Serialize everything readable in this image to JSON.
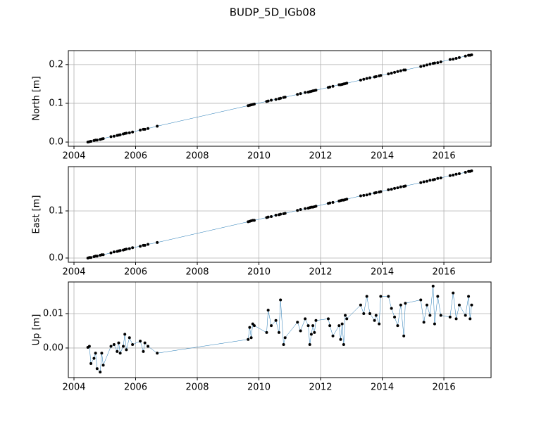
{
  "title": "BUDP_5D_IGb08",
  "chart_data": [
    {
      "type": "line",
      "ylabel": "North [m]",
      "grid": true,
      "xlim": [
        2003.817,
        2017.53
      ],
      "xticks": [
        2004,
        2006,
        2008,
        2010,
        2012,
        2014,
        2016
      ],
      "ylim": [
        -0.0108,
        0.236
      ],
      "yticks": [
        {
          "value": 0,
          "label": "0.0"
        },
        0.1,
        0.2
      ],
      "series": [
        {
          "color": "#1f77b4",
          "marker_color": "#000000",
          "x": [
            2004.45,
            2004.5,
            2004.55,
            2004.65,
            2004.7,
            2004.75,
            2004.85,
            2004.9,
            2004.95,
            2005.2,
            2005.3,
            2005.4,
            2005.45,
            2005.5,
            2005.6,
            2005.65,
            2005.7,
            2005.8,
            2005.9,
            2006.15,
            2006.25,
            2006.3,
            2006.4,
            2006.7,
            2009.65,
            2009.7,
            2009.75,
            2009.8,
            2009.85,
            2010.25,
            2010.3,
            2010.4,
            2010.55,
            2010.65,
            2010.7,
            2010.8,
            2010.85,
            2011.25,
            2011.35,
            2011.5,
            2011.6,
            2011.65,
            2011.7,
            2011.75,
            2011.8,
            2011.85,
            2012.25,
            2012.3,
            2012.4,
            2012.6,
            2012.65,
            2012.7,
            2012.75,
            2012.8,
            2012.85,
            2013.3,
            2013.4,
            2013.5,
            2013.6,
            2013.75,
            2013.8,
            2013.9,
            2013.95,
            2014.2,
            2014.3,
            2014.4,
            2014.5,
            2014.6,
            2014.7,
            2014.75,
            2015.25,
            2015.35,
            2015.45,
            2015.55,
            2015.65,
            2015.7,
            2015.8,
            2015.9,
            2016.2,
            2016.3,
            2016.4,
            2016.5,
            2016.7,
            2016.8,
            2016.85,
            2016.9
          ],
          "values": [
            0,
            0.001,
            0.002,
            0.004,
            0.005,
            0.005,
            0.007,
            0.008,
            0.009,
            0.014,
            0.015,
            0.017,
            0.018,
            0.019,
            0.021,
            0.022,
            0.023,
            0.024,
            0.026,
            0.031,
            0.033,
            0.033,
            0.035,
            0.041,
            0.094,
            0.095,
            0.096,
            0.097,
            0.098,
            0.105,
            0.106,
            0.108,
            0.11,
            0.112,
            0.113,
            0.115,
            0.116,
            0.123,
            0.125,
            0.128,
            0.129,
            0.13,
            0.131,
            0.132,
            0.133,
            0.134,
            0.141,
            0.142,
            0.144,
            0.148,
            0.148,
            0.149,
            0.15,
            0.151,
            0.152,
            0.16,
            0.162,
            0.164,
            0.166,
            0.168,
            0.169,
            0.171,
            0.172,
            0.176,
            0.178,
            0.18,
            0.182,
            0.184,
            0.186,
            0.186,
            0.195,
            0.197,
            0.199,
            0.201,
            0.203,
            0.204,
            0.205,
            0.207,
            0.213,
            0.214,
            0.216,
            0.218,
            0.222,
            0.224,
            0.224,
            0.225
          ]
        }
      ]
    },
    {
      "type": "line",
      "ylabel": "East [m]",
      "grid": true,
      "xlim": [
        2003.817,
        2017.53
      ],
      "xticks": [
        2004,
        2006,
        2008,
        2010,
        2012,
        2014,
        2016
      ],
      "ylim": [
        -0.009,
        0.194
      ],
      "yticks": [
        {
          "value": 0,
          "label": "0.0"
        },
        0.1
      ],
      "series": [
        {
          "color": "#1f77b4",
          "marker_color": "#000000",
          "x": [
            2004.45,
            2004.5,
            2004.55,
            2004.65,
            2004.7,
            2004.75,
            2004.85,
            2004.9,
            2004.95,
            2005.2,
            2005.3,
            2005.4,
            2005.45,
            2005.5,
            2005.6,
            2005.65,
            2005.7,
            2005.8,
            2005.9,
            2006.15,
            2006.25,
            2006.3,
            2006.4,
            2006.7,
            2009.65,
            2009.7,
            2009.75,
            2009.8,
            2009.85,
            2010.25,
            2010.3,
            2010.4,
            2010.55,
            2010.65,
            2010.7,
            2010.8,
            2010.85,
            2011.25,
            2011.35,
            2011.5,
            2011.6,
            2011.65,
            2011.7,
            2011.75,
            2011.8,
            2011.85,
            2012.25,
            2012.3,
            2012.4,
            2012.6,
            2012.65,
            2012.7,
            2012.75,
            2012.8,
            2012.85,
            2013.3,
            2013.4,
            2013.5,
            2013.6,
            2013.75,
            2013.8,
            2013.9,
            2013.95,
            2014.2,
            2014.3,
            2014.4,
            2014.5,
            2014.6,
            2014.7,
            2014.75,
            2015.25,
            2015.35,
            2015.45,
            2015.55,
            2015.65,
            2015.7,
            2015.8,
            2015.9,
            2016.2,
            2016.3,
            2016.4,
            2016.5,
            2016.7,
            2016.8,
            2016.85,
            2016.9
          ],
          "values": [
            0,
            0.001,
            0.001,
            0.003,
            0.004,
            0.004,
            0.006,
            0.007,
            0.007,
            0.011,
            0.013,
            0.014,
            0.015,
            0.016,
            0.017,
            0.018,
            0.019,
            0.02,
            0.022,
            0.025,
            0.027,
            0.027,
            0.029,
            0.033,
            0.077,
            0.078,
            0.079,
            0.08,
            0.08,
            0.086,
            0.087,
            0.088,
            0.091,
            0.092,
            0.093,
            0.094,
            0.095,
            0.101,
            0.103,
            0.105,
            0.106,
            0.107,
            0.108,
            0.108,
            0.109,
            0.11,
            0.116,
            0.117,
            0.118,
            0.121,
            0.122,
            0.123,
            0.123,
            0.124,
            0.125,
            0.132,
            0.133,
            0.134,
            0.136,
            0.138,
            0.139,
            0.14,
            0.141,
            0.145,
            0.146,
            0.148,
            0.149,
            0.151,
            0.152,
            0.153,
            0.16,
            0.162,
            0.163,
            0.165,
            0.166,
            0.167,
            0.169,
            0.17,
            0.175,
            0.176,
            0.178,
            0.179,
            0.182,
            0.184,
            0.184,
            0.185
          ]
        }
      ]
    },
    {
      "type": "line",
      "ylabel": "Up [m]",
      "grid": true,
      "xlim": [
        2003.817,
        2017.53
      ],
      "xticks": [
        2004,
        2006,
        2008,
        2010,
        2012,
        2014,
        2016
      ],
      "ylim": [
        -0.0086,
        0.0192
      ],
      "yticks": [
        {
          "value": 0,
          "label": "0.00"
        },
        {
          "value": 0.01,
          "label": "0.01"
        }
      ],
      "series": [
        {
          "color": "#1f77b4",
          "marker_color": "#000000",
          "x": [
            2004.45,
            2004.5,
            2004.55,
            2004.65,
            2004.7,
            2004.75,
            2004.85,
            2004.9,
            2004.95,
            2005.2,
            2005.3,
            2005.4,
            2005.45,
            2005.5,
            2005.6,
            2005.65,
            2005.7,
            2005.8,
            2005.9,
            2006.15,
            2006.25,
            2006.3,
            2006.4,
            2006.7,
            2009.65,
            2009.7,
            2009.75,
            2009.8,
            2009.85,
            2010.25,
            2010.3,
            2010.4,
            2010.55,
            2010.65,
            2010.7,
            2010.8,
            2010.85,
            2011.25,
            2011.35,
            2011.5,
            2011.6,
            2011.65,
            2011.7,
            2011.75,
            2011.8,
            2011.85,
            2012.25,
            2012.3,
            2012.4,
            2012.6,
            2012.65,
            2012.7,
            2012.75,
            2012.8,
            2012.85,
            2013.3,
            2013.4,
            2013.5,
            2013.6,
            2013.75,
            2013.8,
            2013.9,
            2013.95,
            2014.2,
            2014.3,
            2014.4,
            2014.5,
            2014.6,
            2014.7,
            2014.75,
            2015.25,
            2015.35,
            2015.45,
            2015.55,
            2015.65,
            2015.7,
            2015.8,
            2015.9,
            2016.2,
            2016.3,
            2016.4,
            2016.5,
            2016.7,
            2016.8,
            2016.85,
            2016.9
          ],
          "values": [
            0.0002,
            0.0005,
            -0.0045,
            -0.003,
            -0.0015,
            -0.006,
            -0.007,
            -0.0015,
            -0.005,
            0.0005,
            0.001,
            -0.001,
            0.0015,
            -0.0015,
            0.0005,
            0.004,
            -0.0005,
            0.003,
            0.001,
            0.002,
            -0.001,
            0.0015,
            0.0005,
            -0.0015,
            0.0025,
            0.006,
            0.003,
            0.007,
            0.0065,
            0.0045,
            0.011,
            0.0065,
            0.008,
            0.0045,
            0.014,
            0.001,
            0.003,
            0.0075,
            0.005,
            0.0085,
            0.0065,
            0.001,
            0.004,
            0.0065,
            0.0045,
            0.008,
            0.0085,
            0.0065,
            0.0035,
            0.0065,
            0.0025,
            0.007,
            0.001,
            0.0095,
            0.0085,
            0.0125,
            0.01,
            0.015,
            0.01,
            0.008,
            0.0095,
            0.007,
            0.015,
            0.015,
            0.0115,
            0.009,
            0.0065,
            0.0125,
            0.0035,
            0.013,
            0.014,
            0.0075,
            0.0125,
            0.0095,
            0.018,
            0.007,
            0.015,
            0.0095,
            0.009,
            0.016,
            0.0085,
            0.0125,
            0.0095,
            0.015,
            0.0085,
            0.0125
          ]
        }
      ]
    }
  ]
}
